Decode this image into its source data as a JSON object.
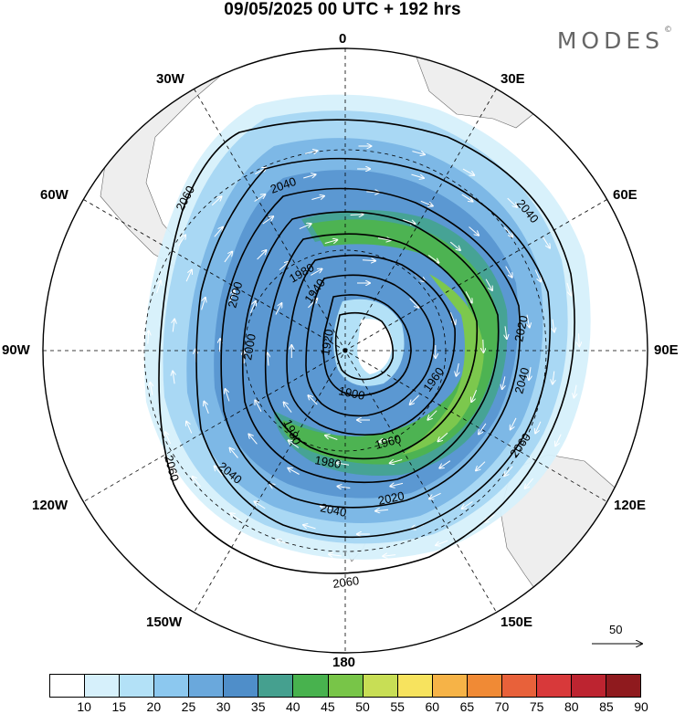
{
  "header": {
    "title": "09/05/2025  00 UTC  + 192 hrs",
    "logo_text": "MODES",
    "logo_mark": "©"
  },
  "map": {
    "projection": "south-polar-stereographic",
    "longitude_labels": [
      "0",
      "30E",
      "60E",
      "90E",
      "120E",
      "150E",
      "180",
      "150W",
      "120W",
      "90W",
      "60W",
      "30W"
    ],
    "land_color": "#eeeeee",
    "ocean_color": "#ffffff",
    "graticule": "dashed"
  },
  "contours": {
    "units_note": "",
    "labels": [
      "2060",
      "2040",
      "2000",
      "1940",
      "1920",
      "1900",
      "1960",
      "1980",
      "2020",
      "2000",
      "2040",
      "2060",
      "2060",
      "2040",
      "1980",
      "2020",
      "2040",
      "2060",
      "1980",
      "1960"
    ]
  },
  "reference_vector": {
    "label": "50"
  },
  "colorbar": {
    "ticks": [
      "10",
      "15",
      "20",
      "25",
      "30",
      "35",
      "40",
      "45",
      "50",
      "55",
      "60",
      "65",
      "70",
      "75",
      "80",
      "85",
      "90"
    ],
    "colors": [
      "#ffffff",
      "#d6f0fb",
      "#b3e1f7",
      "#8cc8ef",
      "#6aa8dc",
      "#4f8ec9",
      "#45a08f",
      "#48b24e",
      "#78c548",
      "#c8de55",
      "#f7e35e",
      "#f6b347",
      "#f08a35",
      "#e8613a",
      "#d8393a",
      "#bd2430",
      "#8f1a1e"
    ]
  }
}
